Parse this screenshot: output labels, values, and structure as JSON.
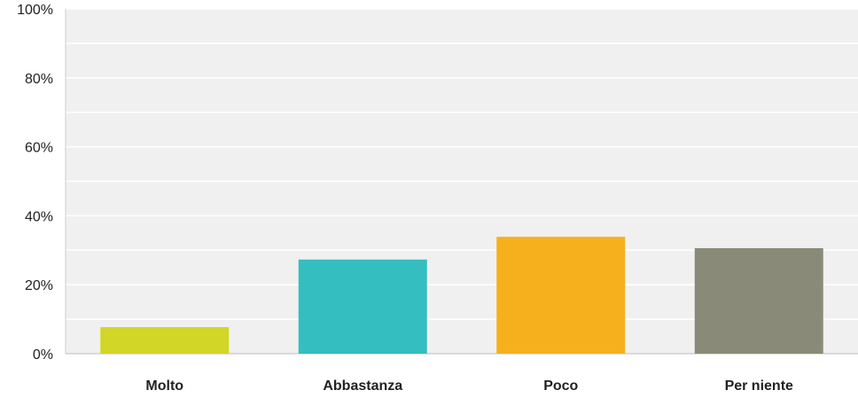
{
  "chart_data": {
    "type": "bar",
    "categories": [
      "Molto",
      "Abbastanza",
      "Poco",
      "Per niente"
    ],
    "values": [
      7.7,
      27.3,
      33.9,
      30.6
    ],
    "ylim": [
      0,
      100
    ],
    "yticks": [
      "0%",
      "20%",
      "40%",
      "60%",
      "80%",
      "100%"
    ],
    "ytick_values": [
      0,
      20,
      40,
      60,
      80,
      100
    ],
    "colors": [
      "#d1d627",
      "#34bec0",
      "#f6b01e",
      "#8a8a78"
    ],
    "plot_background": "#f0f0f0",
    "grid": true
  }
}
